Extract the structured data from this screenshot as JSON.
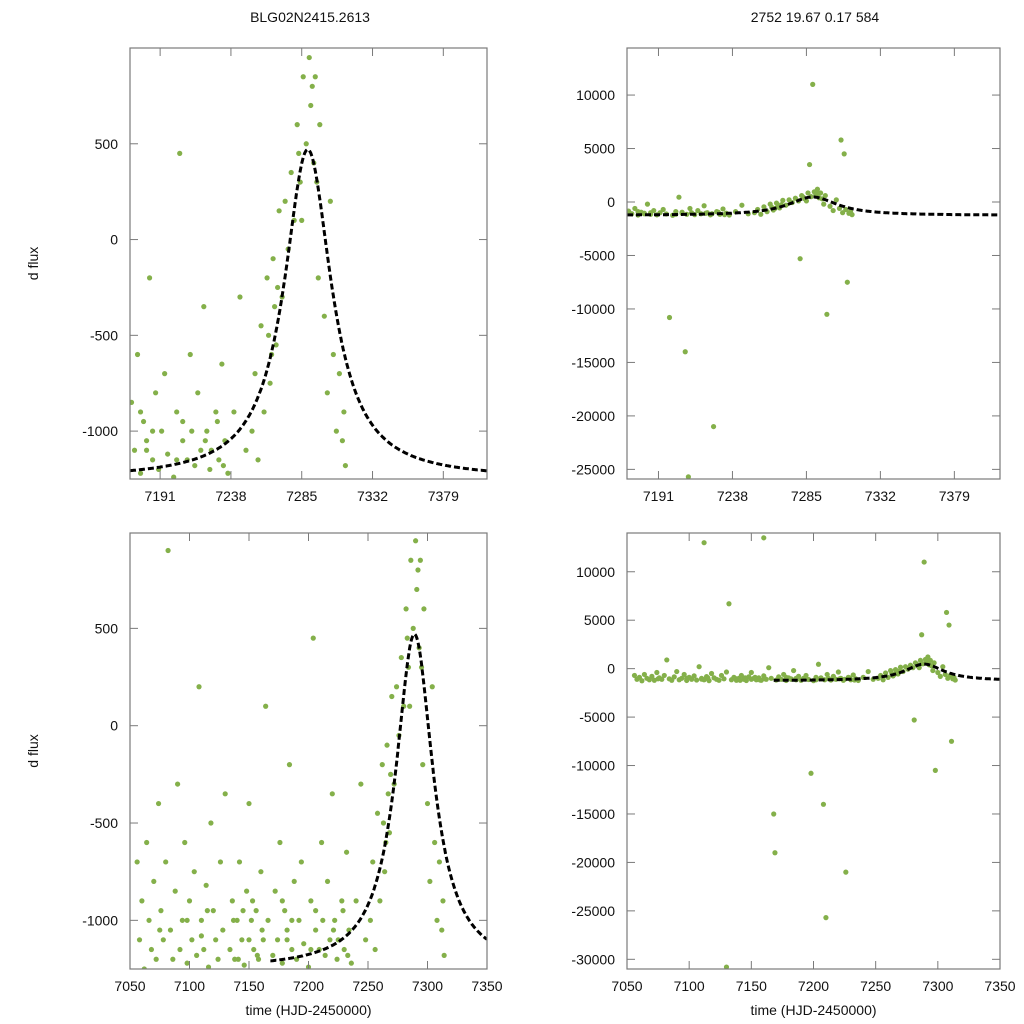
{
  "titles": {
    "left": "BLG02N2415.2613",
    "right": "2752  19.67  0.17  584"
  },
  "colors": {
    "points": "#84b04a",
    "model": "#000000",
    "axis": "#7a7a7a"
  },
  "chart_data": [
    {
      "type": "scatter",
      "panel": "top-left",
      "ylabel": "d flux",
      "xlabel": "",
      "xlim": [
        7171,
        7408
      ],
      "ylim": [
        -1250,
        1000
      ],
      "xticks": [
        7191,
        7238,
        7285,
        7332,
        7379
      ],
      "yticks": [
        -1000,
        -500,
        0,
        500
      ]
    },
    {
      "type": "scatter",
      "panel": "top-right",
      "ylabel": "",
      "xlabel": "",
      "xlim": [
        7171,
        7408
      ],
      "ylim": [
        -25900,
        14400
      ],
      "xticks": [
        7191,
        7238,
        7285,
        7332,
        7379
      ],
      "yticks": [
        -25000,
        -20000,
        -15000,
        -10000,
        -5000,
        0,
        5000,
        10000
      ]
    },
    {
      "type": "scatter",
      "panel": "bottom-left",
      "ylabel": "d flux",
      "xlabel": "time (HJD-2450000)",
      "xlim": [
        7050,
        7350
      ],
      "ylim": [
        -1250,
        990
      ],
      "xticks": [
        7050,
        7100,
        7150,
        7200,
        7250,
        7300,
        7350
      ],
      "yticks": [
        -1000,
        -500,
        0,
        500
      ]
    },
    {
      "type": "scatter",
      "panel": "bottom-right",
      "ylabel": "",
      "xlabel": "time (HJD-2450000)",
      "xlim": [
        7050,
        7350
      ],
      "ylim": [
        -31000,
        14000
      ],
      "xticks": [
        7050,
        7100,
        7150,
        7200,
        7250,
        7300,
        7350
      ],
      "yticks": [
        -30000,
        -25000,
        -20000,
        -15000,
        -10000,
        -5000,
        0,
        5000,
        10000
      ]
    }
  ],
  "model": {
    "t0": 7289,
    "baseline": -1250,
    "amplitude": 1720,
    "width": 19,
    "t_start": 7168,
    "t_end": 7410
  },
  "points": [
    [
      7056,
      -700
    ],
    [
      7058,
      -1100
    ],
    [
      7060,
      -900
    ],
    [
      7062,
      -1250
    ],
    [
      7064,
      -600
    ],
    [
      7066,
      -1000
    ],
    [
      7068,
      -1150
    ],
    [
      7070,
      -800
    ],
    [
      7072,
      -1200
    ],
    [
      7074,
      -400
    ],
    [
      7076,
      -950
    ],
    [
      7078,
      -1100
    ],
    [
      7080,
      -700
    ],
    [
      7082,
      900
    ],
    [
      7084,
      -1050
    ],
    [
      7086,
      -1200
    ],
    [
      7088,
      -850
    ],
    [
      7090,
      -300
    ],
    [
      7092,
      -1150
    ],
    [
      7094,
      -1000
    ],
    [
      7096,
      -600
    ],
    [
      7098,
      -1220
    ],
    [
      7100,
      -900
    ],
    [
      7102,
      -1100
    ],
    [
      7104,
      -750
    ],
    [
      7106,
      -1180
    ],
    [
      7108,
      200
    ],
    [
      7110,
      -1000
    ],
    [
      7112,
      -1150
    ],
    [
      7114,
      -820
    ],
    [
      7116,
      -1240
    ],
    [
      7118,
      -500
    ],
    [
      7120,
      -950
    ],
    [
      7122,
      -1100
    ],
    [
      7124,
      -1200
    ],
    [
      7126,
      -700
    ],
    [
      7128,
      -1050
    ],
    [
      7130,
      -350
    ],
    [
      7132,
      6700
    ],
    [
      7134,
      -1150
    ],
    [
      7136,
      -900
    ],
    [
      7138,
      -1200
    ],
    [
      7140,
      -1000
    ],
    [
      7142,
      -700
    ],
    [
      7144,
      -1100
    ],
    [
      7146,
      -1230
    ],
    [
      7148,
      -850
    ],
    [
      7150,
      -400
    ],
    [
      7152,
      -1000
    ],
    [
      7154,
      -1150
    ],
    [
      7156,
      -950
    ],
    [
      7158,
      -1200
    ],
    [
      7160,
      -750
    ],
    [
      7162,
      -1100
    ],
    [
      7164,
      100
    ],
    [
      7166,
      -1000
    ],
    [
      7168,
      -15000
    ],
    [
      7169,
      -19000
    ],
    [
      7170,
      -1180
    ],
    [
      7172,
      -850
    ],
    [
      7174,
      -1100
    ],
    [
      7176,
      -600
    ],
    [
      7178,
      -1220
    ],
    [
      7180,
      -950
    ],
    [
      7182,
      -1050
    ],
    [
      7184,
      -200
    ],
    [
      7186,
      -1150
    ],
    [
      7188,
      -800
    ],
    [
      7190,
      -1200
    ],
    [
      7192,
      -1000
    ],
    [
      7194,
      -700
    ],
    [
      7196,
      -1120
    ],
    [
      7198,
      -10800
    ],
    [
      7200,
      -1240
    ],
    [
      7202,
      -900
    ],
    [
      7204,
      450
    ],
    [
      7206,
      -1050
    ],
    [
      7208,
      -14000
    ],
    [
      7209,
      -1150
    ],
    [
      7210,
      -25700
    ],
    [
      7211,
      -600
    ],
    [
      7212,
      -1000
    ],
    [
      7214,
      -1180
    ],
    [
      7216,
      -800
    ],
    [
      7218,
      -1100
    ],
    [
      7220,
      -350
    ],
    [
      7222,
      -1000
    ],
    [
      7224,
      -1200
    ],
    [
      7226,
      -21000
    ],
    [
      7228,
      -900
    ],
    [
      7230,
      -1150
    ],
    [
      7232,
      -650
    ],
    [
      7234,
      -1050
    ],
    [
      7236,
      -1220
    ],
    [
      7240,
      -900
    ],
    [
      7244,
      -300
    ],
    [
      7248,
      -1100
    ],
    [
      7252,
      -1000
    ],
    [
      7254,
      -700
    ],
    [
      7256,
      -1150
    ],
    [
      7258,
      -450
    ],
    [
      7260,
      -900
    ],
    [
      7262,
      -200
    ],
    [
      7264,
      -750
    ],
    [
      7266,
      -100
    ],
    [
      7268,
      -550
    ],
    [
      7270,
      150
    ],
    [
      7272,
      -300
    ],
    [
      7274,
      200
    ],
    [
      7276,
      -50
    ],
    [
      7278,
      350
    ],
    [
      7280,
      100
    ],
    [
      7282,
      600
    ],
    [
      7284,
      300
    ],
    [
      7286,
      850
    ],
    [
      7287,
      3500
    ],
    [
      7288,
      500
    ],
    [
      7289,
      11000
    ],
    [
      7290,
      950
    ],
    [
      7291,
      700
    ],
    [
      7292,
      1200
    ],
    [
      7293,
      400
    ],
    [
      7294,
      850
    ],
    [
      7295,
      300
    ],
    [
      7296,
      -200
    ],
    [
      7297,
      600
    ],
    [
      7298,
      -10500
    ],
    [
      7300,
      -400
    ],
    [
      7302,
      -800
    ],
    [
      7304,
      200
    ],
    [
      7306,
      -600
    ],
    [
      7307,
      5800
    ],
    [
      7308,
      -1000
    ],
    [
      7309,
      4500
    ],
    [
      7310,
      -700
    ],
    [
      7311,
      -7500
    ],
    [
      7312,
      -1050
    ],
    [
      7313,
      -900
    ],
    [
      7314,
      -1180
    ],
    [
      7281,
      -5300
    ],
    [
      7150,
      -1100
    ],
    [
      7153,
      -900
    ],
    [
      7157,
      -1180
    ],
    [
      7161,
      -1050
    ],
    [
      7145,
      -950
    ],
    [
      7141,
      -1200
    ],
    [
      7137,
      -1000
    ],
    [
      7110,
      -1080
    ],
    [
      7115,
      -950
    ],
    [
      7225,
      -1100
    ],
    [
      7229,
      -950
    ],
    [
      7233,
      -1180
    ],
    [
      7221,
      -1050
    ],
    [
      7265,
      -600
    ],
    [
      7267,
      -350
    ],
    [
      7263,
      -500
    ],
    [
      7269,
      -250
    ],
    [
      7285,
      100
    ],
    [
      7283,
      450
    ],
    [
      7292,
      800
    ],
    [
      7112,
      13000
    ],
    [
      7160,
      13500
    ],
    [
      7130,
      -30800
    ],
    [
      7182,
      -1100
    ],
    [
      7202,
      -1150
    ],
    [
      7206,
      -950
    ],
    [
      7186,
      -1000
    ],
    [
      7178,
      -900
    ],
    [
      7098,
      -1000
    ],
    [
      7075,
      -1050
    ]
  ]
}
